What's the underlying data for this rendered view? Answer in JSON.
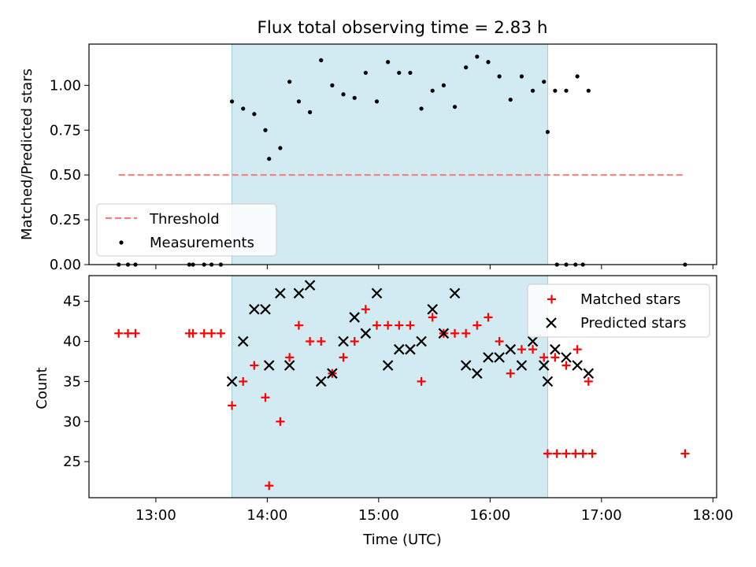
{
  "chart_data": [
    {
      "type": "scatter",
      "title": "Flux total observing time = 2.83 h",
      "ylabel": "Matched/Predicted stars",
      "xlabel": "",
      "xlim": [
        "12:24",
        "18:02"
      ],
      "ylim": [
        0,
        1.23
      ],
      "yticks": [
        "0.00",
        "0.25",
        "0.50",
        "0.75",
        "1.00"
      ],
      "shaded_interval": [
        "13:41",
        "16:31"
      ],
      "shade_color": "#add8e6",
      "legend": {
        "position": "lower-left",
        "entries": [
          "Threshold",
          "Measurements"
        ]
      },
      "threshold": {
        "name": "Threshold",
        "y": 0.5,
        "x": [
          "12:40",
          "17:44"
        ],
        "color": "#f08080",
        "style": "dashed"
      },
      "series": [
        {
          "name": "Measurements",
          "color": "#000000",
          "marker": "dot",
          "points": [
            [
              "12:40",
              0
            ],
            [
              "12:45",
              0
            ],
            [
              "12:49",
              0
            ],
            [
              "13:18",
              0
            ],
            [
              "13:20",
              0
            ],
            [
              "13:26",
              0
            ],
            [
              "13:30",
              0
            ],
            [
              "13:35",
              0
            ],
            [
              "13:41",
              0.91
            ],
            [
              "13:47",
              0.87
            ],
            [
              "13:53",
              0.84
            ],
            [
              "13:59",
              0.75
            ],
            [
              "14:01",
              0.59
            ],
            [
              "14:07",
              0.65
            ],
            [
              "14:12",
              1.02
            ],
            [
              "14:17",
              0.91
            ],
            [
              "14:23",
              0.85
            ],
            [
              "14:29",
              1.14
            ],
            [
              "14:35",
              1.0
            ],
            [
              "14:41",
              0.95
            ],
            [
              "14:47",
              0.93
            ],
            [
              "14:53",
              1.07
            ],
            [
              "14:59",
              0.91
            ],
            [
              "15:05",
              1.13
            ],
            [
              "15:11",
              1.07
            ],
            [
              "15:17",
              1.07
            ],
            [
              "15:23",
              0.87
            ],
            [
              "15:29",
              0.97
            ],
            [
              "15:35",
              1.0
            ],
            [
              "15:41",
              0.88
            ],
            [
              "15:47",
              1.1
            ],
            [
              "15:53",
              1.16
            ],
            [
              "15:59",
              1.13
            ],
            [
              "16:05",
              1.05
            ],
            [
              "16:11",
              0.92
            ],
            [
              "16:17",
              1.05
            ],
            [
              "16:23",
              0.97
            ],
            [
              "16:29",
              1.02
            ],
            [
              "16:35",
              0.97
            ],
            [
              "16:41",
              0.97
            ],
            [
              "16:47",
              1.05
            ],
            [
              "16:53",
              0.97
            ],
            [
              "16:31",
              0.74
            ],
            [
              "16:36",
              0
            ],
            [
              "16:41",
              0
            ],
            [
              "16:46",
              0
            ],
            [
              "16:50",
              0
            ],
            [
              "17:45",
              0
            ]
          ]
        }
      ]
    },
    {
      "type": "scatter",
      "title": "",
      "ylabel": "Count",
      "xlabel": "Time (UTC)",
      "xlim": [
        "12:24",
        "18:02"
      ],
      "ylim": [
        20.5,
        48.2
      ],
      "yticks": [
        "25",
        "30",
        "35",
        "40",
        "45"
      ],
      "xticks": [
        "13:00",
        "14:00",
        "15:00",
        "16:00",
        "17:00",
        "18:00"
      ],
      "shaded_interval": [
        "13:41",
        "16:31"
      ],
      "shade_color": "#add8e6",
      "legend": {
        "position": "top-right",
        "entries": [
          "Matched stars",
          "Predicted stars"
        ]
      },
      "series": [
        {
          "name": "Matched stars",
          "color": "#ff0000",
          "marker": "plus",
          "points": [
            [
              "12:40",
              41
            ],
            [
              "12:45",
              41
            ],
            [
              "12:49",
              41
            ],
            [
              "13:18",
              41
            ],
            [
              "13:20",
              41
            ],
            [
              "13:26",
              41
            ],
            [
              "13:30",
              41
            ],
            [
              "13:35",
              41
            ],
            [
              "13:41",
              32
            ],
            [
              "13:47",
              35
            ],
            [
              "13:53",
              37
            ],
            [
              "13:59",
              33
            ],
            [
              "14:01",
              22
            ],
            [
              "14:07",
              30
            ],
            [
              "14:12",
              38
            ],
            [
              "14:17",
              42
            ],
            [
              "14:23",
              40
            ],
            [
              "14:29",
              40
            ],
            [
              "14:35",
              36
            ],
            [
              "14:41",
              38
            ],
            [
              "14:47",
              40
            ],
            [
              "14:53",
              44
            ],
            [
              "14:59",
              42
            ],
            [
              "15:05",
              42
            ],
            [
              "15:11",
              42
            ],
            [
              "15:17",
              42
            ],
            [
              "15:23",
              35
            ],
            [
              "15:29",
              43
            ],
            [
              "15:35",
              41
            ],
            [
              "15:41",
              41
            ],
            [
              "15:47",
              41
            ],
            [
              "15:53",
              42
            ],
            [
              "15:59",
              43
            ],
            [
              "16:05",
              40
            ],
            [
              "16:11",
              36
            ],
            [
              "16:17",
              39
            ],
            [
              "16:23",
              39
            ],
            [
              "16:29",
              38
            ],
            [
              "16:35",
              38
            ],
            [
              "16:41",
              37
            ],
            [
              "16:47",
              39
            ],
            [
              "16:53",
              35
            ],
            [
              "16:31",
              26
            ],
            [
              "16:36",
              26
            ],
            [
              "16:41",
              26
            ],
            [
              "16:46",
              26
            ],
            [
              "16:50",
              26
            ],
            [
              "16:55",
              26
            ],
            [
              "17:45",
              26
            ]
          ]
        },
        {
          "name": "Predicted stars",
          "color": "#000000",
          "marker": "x",
          "points": [
            [
              "13:41",
              35
            ],
            [
              "13:47",
              40
            ],
            [
              "13:53",
              44
            ],
            [
              "13:59",
              44
            ],
            [
              "14:01",
              37
            ],
            [
              "14:07",
              46
            ],
            [
              "14:12",
              37
            ],
            [
              "14:17",
              46
            ],
            [
              "14:23",
              47
            ],
            [
              "14:29",
              35
            ],
            [
              "14:35",
              36
            ],
            [
              "14:41",
              40
            ],
            [
              "14:47",
              43
            ],
            [
              "14:53",
              41
            ],
            [
              "14:59",
              46
            ],
            [
              "15:05",
              37
            ],
            [
              "15:11",
              39
            ],
            [
              "15:17",
              39
            ],
            [
              "15:23",
              40
            ],
            [
              "15:29",
              44
            ],
            [
              "15:35",
              41
            ],
            [
              "15:41",
              46
            ],
            [
              "15:47",
              37
            ],
            [
              "15:53",
              36
            ],
            [
              "15:59",
              38
            ],
            [
              "16:05",
              38
            ],
            [
              "16:11",
              39
            ],
            [
              "16:17",
              37
            ],
            [
              "16:23",
              40
            ],
            [
              "16:29",
              37
            ],
            [
              "16:35",
              39
            ],
            [
              "16:41",
              38
            ],
            [
              "16:47",
              37
            ],
            [
              "16:53",
              36
            ],
            [
              "16:31",
              35
            ]
          ]
        }
      ]
    }
  ]
}
